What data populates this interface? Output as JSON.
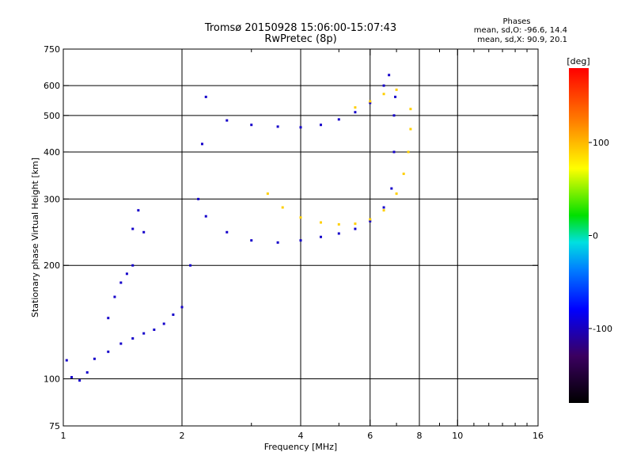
{
  "header": {
    "title_line1": "Tromsø 20150928 15:06:00-15:07:43",
    "title_line2": "RwPretec (8p)",
    "stats_heading": "Phases",
    "stats_o": "mean, sd,O: -96.6, 14.4",
    "stats_x": "mean, sd,X:  90.9, 20.1"
  },
  "chart_data": {
    "type": "scatter",
    "title": "Tromsø 20150928 15:06:00-15:07:43",
    "subtitle": "RwPretec (8p)",
    "xlabel": "Frequency [MHz]",
    "ylabel": "Stationary phase Virtual Height [km]",
    "x_scale": "log",
    "y_scale": "log",
    "xlim": [
      1,
      16
    ],
    "ylim": [
      75,
      750
    ],
    "x_ticks": [
      1,
      2,
      4,
      6,
      8,
      10,
      16
    ],
    "x_tick_labels": [
      "1",
      "2",
      "4",
      "6",
      "8",
      "10",
      "16"
    ],
    "x_minor_ticks": [
      3,
      5,
      7,
      9,
      11,
      12,
      13,
      14,
      15
    ],
    "y_ticks": [
      75,
      100,
      200,
      300,
      400,
      500,
      600,
      750
    ],
    "y_tick_labels": [
      "75",
      "100",
      "200",
      "300",
      "400",
      "500",
      "600",
      "750"
    ],
    "grid": true,
    "colorbar": {
      "label": "[deg]",
      "range": [
        -180,
        180
      ],
      "ticks": [
        100,
        0,
        -100
      ],
      "tick_labels": [
        "100",
        "0",
        "-100"
      ]
    },
    "series": [
      {
        "name": "O",
        "color_value": -96.6,
        "points": [
          [
            1.02,
            112
          ],
          [
            1.05,
            101
          ],
          [
            1.1,
            99
          ],
          [
            1.15,
            104
          ],
          [
            1.2,
            113
          ],
          [
            1.3,
            118
          ],
          [
            1.4,
            124
          ],
          [
            1.5,
            128
          ],
          [
            1.6,
            132
          ],
          [
            1.7,
            135
          ],
          [
            1.8,
            140
          ],
          [
            1.9,
            148
          ],
          [
            2.0,
            155
          ],
          [
            2.1,
            200
          ],
          [
            2.2,
            300
          ],
          [
            2.25,
            420
          ],
          [
            2.3,
            560
          ],
          [
            2.6,
            485
          ],
          [
            3.0,
            472
          ],
          [
            3.5,
            467
          ],
          [
            4.0,
            465
          ],
          [
            4.5,
            472
          ],
          [
            5.0,
            488
          ],
          [
            5.5,
            510
          ],
          [
            6.0,
            540
          ],
          [
            6.5,
            600
          ],
          [
            6.7,
            640
          ],
          [
            2.3,
            270
          ],
          [
            2.6,
            245
          ],
          [
            3.0,
            233
          ],
          [
            3.5,
            230
          ],
          [
            4.0,
            233
          ],
          [
            4.5,
            238
          ],
          [
            5.0,
            243
          ],
          [
            5.5,
            250
          ],
          [
            6.0,
            262
          ],
          [
            6.5,
            285
          ],
          [
            6.8,
            320
          ],
          [
            6.9,
            400
          ],
          [
            6.9,
            500
          ],
          [
            6.95,
            560
          ],
          [
            1.3,
            145
          ],
          [
            1.35,
            165
          ],
          [
            1.4,
            180
          ],
          [
            1.45,
            190
          ],
          [
            1.5,
            200
          ],
          [
            1.5,
            250
          ],
          [
            1.55,
            280
          ],
          [
            1.6,
            245
          ]
        ]
      },
      {
        "name": "X",
        "color_value": 90.9,
        "points": [
          [
            3.3,
            310
          ],
          [
            3.6,
            285
          ],
          [
            4.0,
            268
          ],
          [
            4.5,
            260
          ],
          [
            5.0,
            257
          ],
          [
            5.5,
            258
          ],
          [
            6.0,
            265
          ],
          [
            6.5,
            280
          ],
          [
            7.0,
            310
          ],
          [
            7.3,
            350
          ],
          [
            7.5,
            400
          ],
          [
            7.6,
            460
          ],
          [
            7.6,
            520
          ],
          [
            5.5,
            525
          ],
          [
            6.0,
            545
          ],
          [
            6.5,
            570
          ],
          [
            7.0,
            585
          ]
        ]
      }
    ]
  }
}
